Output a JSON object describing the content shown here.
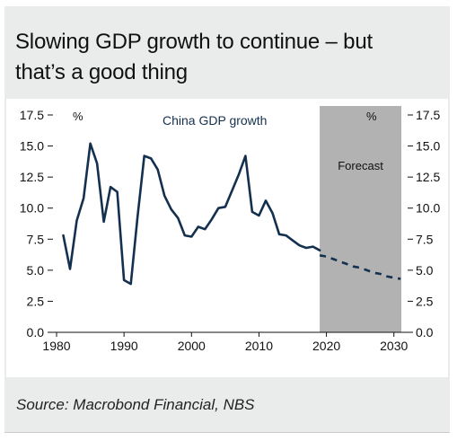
{
  "title_line1": "Slowing GDP growth to continue – but",
  "title_line2": "that’s a good thing",
  "source": "Source: Macrobond Financial, NBS",
  "colors": {
    "series": "#14304f",
    "forecast_band": "#b2b2b2",
    "panel": "#e9eceb"
  },
  "chart_data": {
    "type": "line",
    "title": "China GDP growth",
    "xlabel": "",
    "ylabel": "%",
    "ylabel_right": "%",
    "xlim": [
      1980,
      2031.5
    ],
    "ylim": [
      0,
      17.5
    ],
    "x_ticks": [
      1980,
      1990,
      2000,
      2010,
      2020,
      2030
    ],
    "y_ticks": [
      0.0,
      2.5,
      5.0,
      7.5,
      10.0,
      12.5,
      15.0,
      17.5
    ],
    "y_tick_labels": [
      "0.0",
      "2.5",
      "5.0",
      "7.5",
      "10.0",
      "12.5",
      "15.0",
      "17.5"
    ],
    "grid": false,
    "forecast_region": {
      "label": "Forecast",
      "x_start": 2019,
      "x_end": 2031.5
    },
    "series": [
      {
        "name": "China GDP growth",
        "style": "solid",
        "x": [
          1981,
          1982,
          1983,
          1984,
          1985,
          1986,
          1987,
          1988,
          1989,
          1990,
          1991,
          1992,
          1993,
          1994,
          1995,
          1996,
          1997,
          1998,
          1999,
          2000,
          2001,
          2002,
          2003,
          2004,
          2005,
          2006,
          2007,
          2008,
          2009,
          2010,
          2011,
          2012,
          2013,
          2014,
          2015,
          2016,
          2017,
          2018,
          2019
        ],
        "y": [
          7.8,
          5.1,
          9.0,
          10.8,
          15.2,
          13.6,
          8.9,
          11.7,
          11.3,
          4.2,
          3.9,
          9.3,
          14.2,
          14.0,
          13.1,
          11.0,
          9.9,
          9.2,
          7.8,
          7.7,
          8.5,
          8.3,
          9.1,
          10.0,
          10.1,
          11.4,
          12.7,
          14.2,
          9.7,
          9.4,
          10.6,
          9.6,
          7.9,
          7.8,
          7.4,
          7.0,
          6.8,
          6.9,
          6.6
        ]
      },
      {
        "name": "",
        "style": "dashed",
        "x": [
          2019,
          2020,
          2021,
          2022,
          2023,
          2024,
          2025,
          2026,
          2027,
          2028,
          2029,
          2030,
          2031
        ],
        "y": [
          6.2,
          6.1,
          5.9,
          5.7,
          5.5,
          5.3,
          5.2,
          5.0,
          4.8,
          4.7,
          4.5,
          4.4,
          4.3
        ]
      }
    ]
  }
}
